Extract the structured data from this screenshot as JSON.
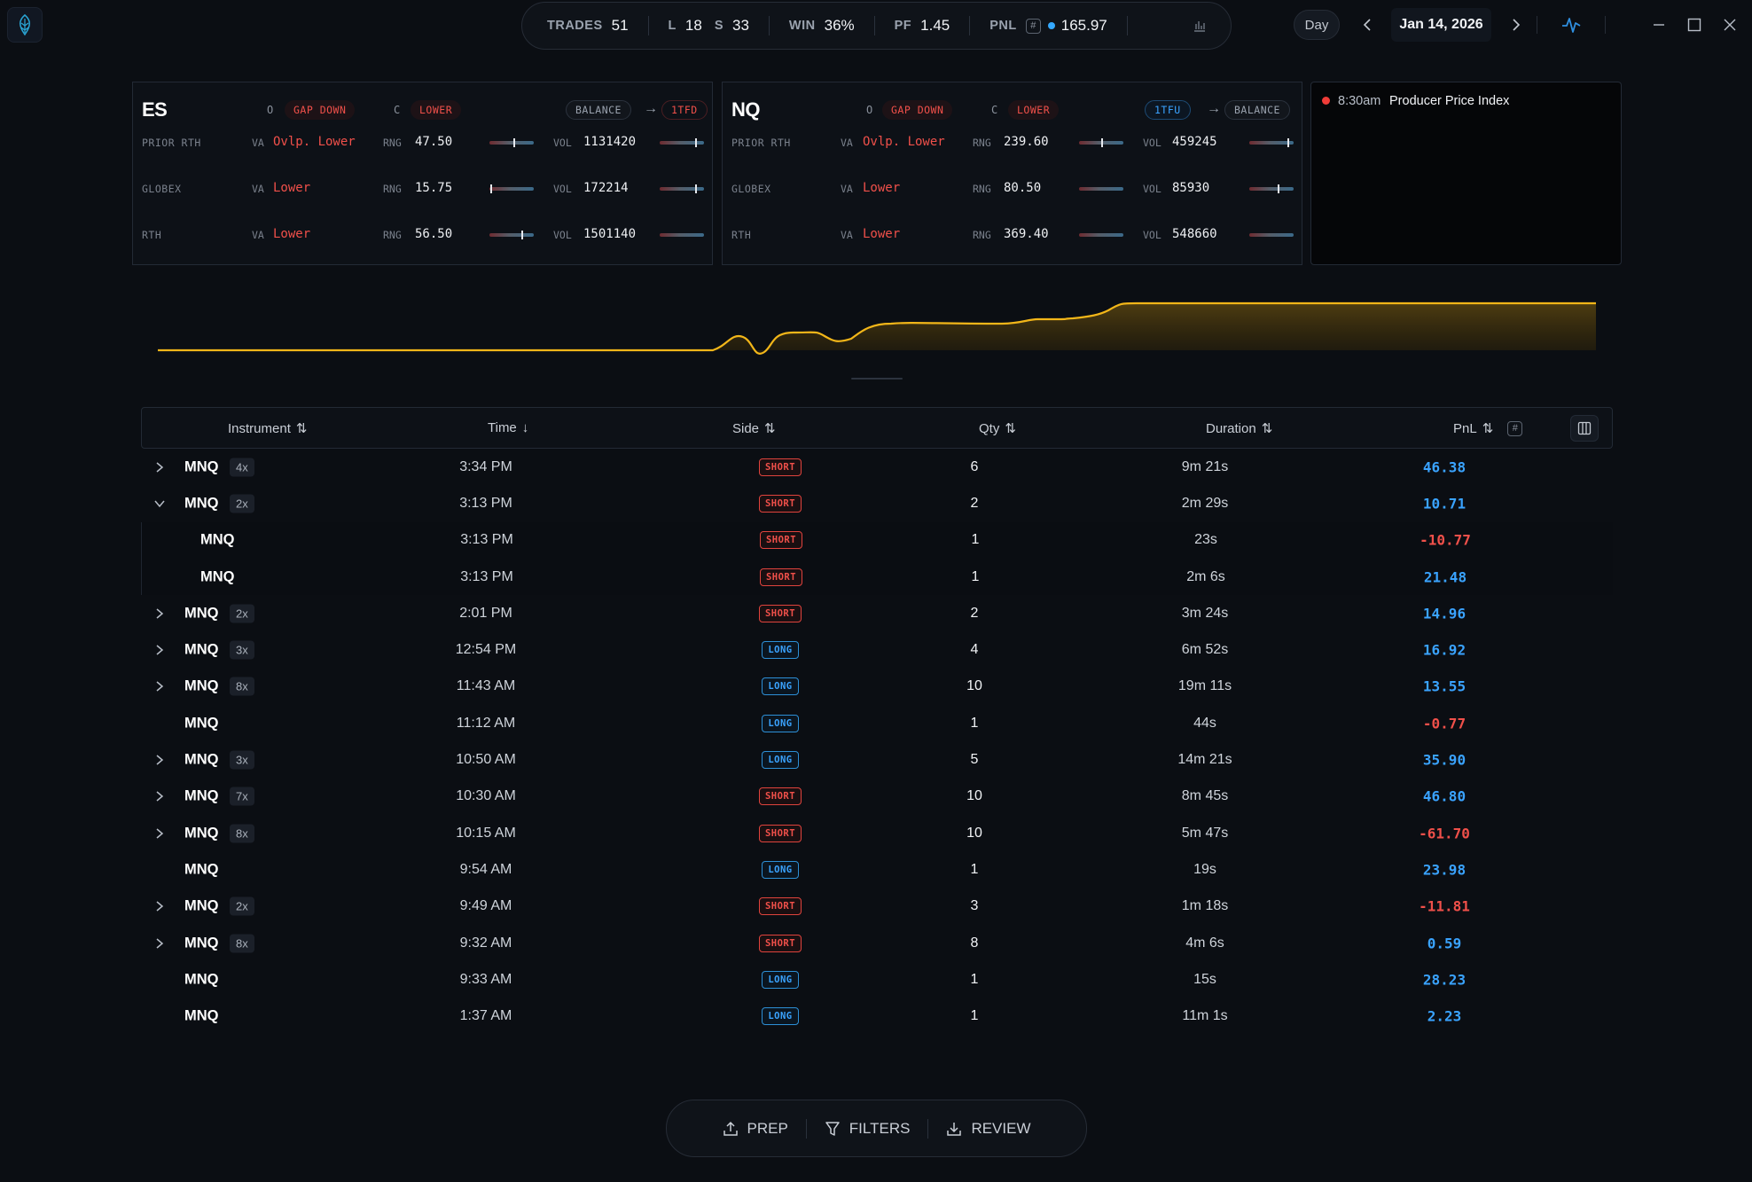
{
  "stats": {
    "trades_label": "TRADES",
    "trades": "51",
    "long_label": "L",
    "long": "18",
    "short_label": "S",
    "short": "33",
    "win_label": "WIN",
    "win": "36%",
    "pf_label": "PF",
    "pf": "1.45",
    "pnl_label": "PNL",
    "pnl": "165.97"
  },
  "nav": {
    "period": "Day",
    "date": "Jan 14, 2026"
  },
  "panels": [
    {
      "symbol": "ES",
      "open_label": "O",
      "open_tag": "GAP DOWN",
      "close_label": "C",
      "close_tag": "LOWER",
      "from_state": "BALANCE",
      "to_state": "1TFD",
      "rows": [
        {
          "label": "PRIOR RTH",
          "va_label": "VA",
          "va": "Ovlp. Lower",
          "rng_label": "RNG",
          "rng": "47.50",
          "vol_label": "VOL",
          "vol": "1131420"
        },
        {
          "label": "GLOBEX",
          "va_label": "VA",
          "va": "Lower",
          "rng_label": "RNG",
          "rng": "15.75",
          "vol_label": "VOL",
          "vol": "172214"
        },
        {
          "label": "RTH",
          "va_label": "VA",
          "va": "Lower",
          "rng_label": "RNG",
          "rng": "56.50",
          "vol_label": "VOL",
          "vol": "1501140"
        }
      ]
    },
    {
      "symbol": "NQ",
      "open_label": "O",
      "open_tag": "GAP DOWN",
      "close_label": "C",
      "close_tag": "LOWER",
      "from_state": "1TFU",
      "to_state": "BALANCE",
      "rows": [
        {
          "label": "PRIOR RTH",
          "va_label": "VA",
          "va": "Ovlp. Lower",
          "rng_label": "RNG",
          "rng": "239.60",
          "vol_label": "VOL",
          "vol": "459245"
        },
        {
          "label": "GLOBEX",
          "va_label": "VA",
          "va": "Lower",
          "rng_label": "RNG",
          "rng": "80.50",
          "vol_label": "VOL",
          "vol": "85930"
        },
        {
          "label": "RTH",
          "va_label": "VA",
          "va": "Lower",
          "rng_label": "RNG",
          "rng": "369.40",
          "vol_label": "VOL",
          "vol": "548660"
        }
      ]
    }
  ],
  "news": {
    "time": "8:30am",
    "title": "Producer Price Index"
  },
  "table": {
    "headers": {
      "instrument": "Instrument",
      "time": "Time",
      "side": "Side",
      "qty": "Qty",
      "duration": "Duration",
      "pnl": "PnL"
    },
    "rows": [
      {
        "inst": "MNQ",
        "count": "4x",
        "time": "3:34 PM",
        "side": "SHORT",
        "qty": "6",
        "dur": "9m 21s",
        "pnl": "46.38"
      },
      {
        "inst": "MNQ",
        "count": "2x",
        "time": "3:13 PM",
        "side": "SHORT",
        "qty": "2",
        "dur": "2m 29s",
        "pnl": "10.71"
      },
      {
        "inst": "MNQ",
        "count": "",
        "time": "3:13 PM",
        "side": "SHORT",
        "qty": "1",
        "dur": "23s",
        "pnl": "-10.77"
      },
      {
        "inst": "MNQ",
        "count": "",
        "time": "3:13 PM",
        "side": "SHORT",
        "qty": "1",
        "dur": "2m 6s",
        "pnl": "21.48"
      },
      {
        "inst": "MNQ",
        "count": "2x",
        "time": "2:01 PM",
        "side": "SHORT",
        "qty": "2",
        "dur": "3m 24s",
        "pnl": "14.96"
      },
      {
        "inst": "MNQ",
        "count": "3x",
        "time": "12:54 PM",
        "side": "LONG",
        "qty": "4",
        "dur": "6m 52s",
        "pnl": "16.92"
      },
      {
        "inst": "MNQ",
        "count": "8x",
        "time": "11:43 AM",
        "side": "LONG",
        "qty": "10",
        "dur": "19m 11s",
        "pnl": "13.55"
      },
      {
        "inst": "MNQ",
        "count": "",
        "time": "11:12 AM",
        "side": "LONG",
        "qty": "1",
        "dur": "44s",
        "pnl": "-0.77"
      },
      {
        "inst": "MNQ",
        "count": "3x",
        "time": "10:50 AM",
        "side": "LONG",
        "qty": "5",
        "dur": "14m 21s",
        "pnl": "35.90"
      },
      {
        "inst": "MNQ",
        "count": "7x",
        "time": "10:30 AM",
        "side": "SHORT",
        "qty": "10",
        "dur": "8m 45s",
        "pnl": "46.80"
      },
      {
        "inst": "MNQ",
        "count": "8x",
        "time": "10:15 AM",
        "side": "SHORT",
        "qty": "10",
        "dur": "5m 47s",
        "pnl": "-61.70"
      },
      {
        "inst": "MNQ",
        "count": "",
        "time": "9:54 AM",
        "side": "LONG",
        "qty": "1",
        "dur": "19s",
        "pnl": "23.98"
      },
      {
        "inst": "MNQ",
        "count": "2x",
        "time": "9:49 AM",
        "side": "SHORT",
        "qty": "3",
        "dur": "1m 18s",
        "pnl": "-11.81"
      },
      {
        "inst": "MNQ",
        "count": "8x",
        "time": "9:32 AM",
        "side": "SHORT",
        "qty": "8",
        "dur": "4m 6s",
        "pnl": "0.59"
      },
      {
        "inst": "MNQ",
        "count": "",
        "time": "9:33 AM",
        "side": "LONG",
        "qty": "1",
        "dur": "15s",
        "pnl": "28.23"
      },
      {
        "inst": "MNQ",
        "count": "",
        "time": "1:37 AM",
        "side": "LONG",
        "qty": "1",
        "dur": "11m 1s",
        "pnl": "2.23"
      }
    ]
  },
  "toolbar": {
    "prep": "PREP",
    "filters": "FILTERS",
    "review": "REVIEW"
  },
  "colors": {
    "positive": "#3aa3ff",
    "negative": "#f0504a",
    "equity_line": "#f2b619"
  }
}
